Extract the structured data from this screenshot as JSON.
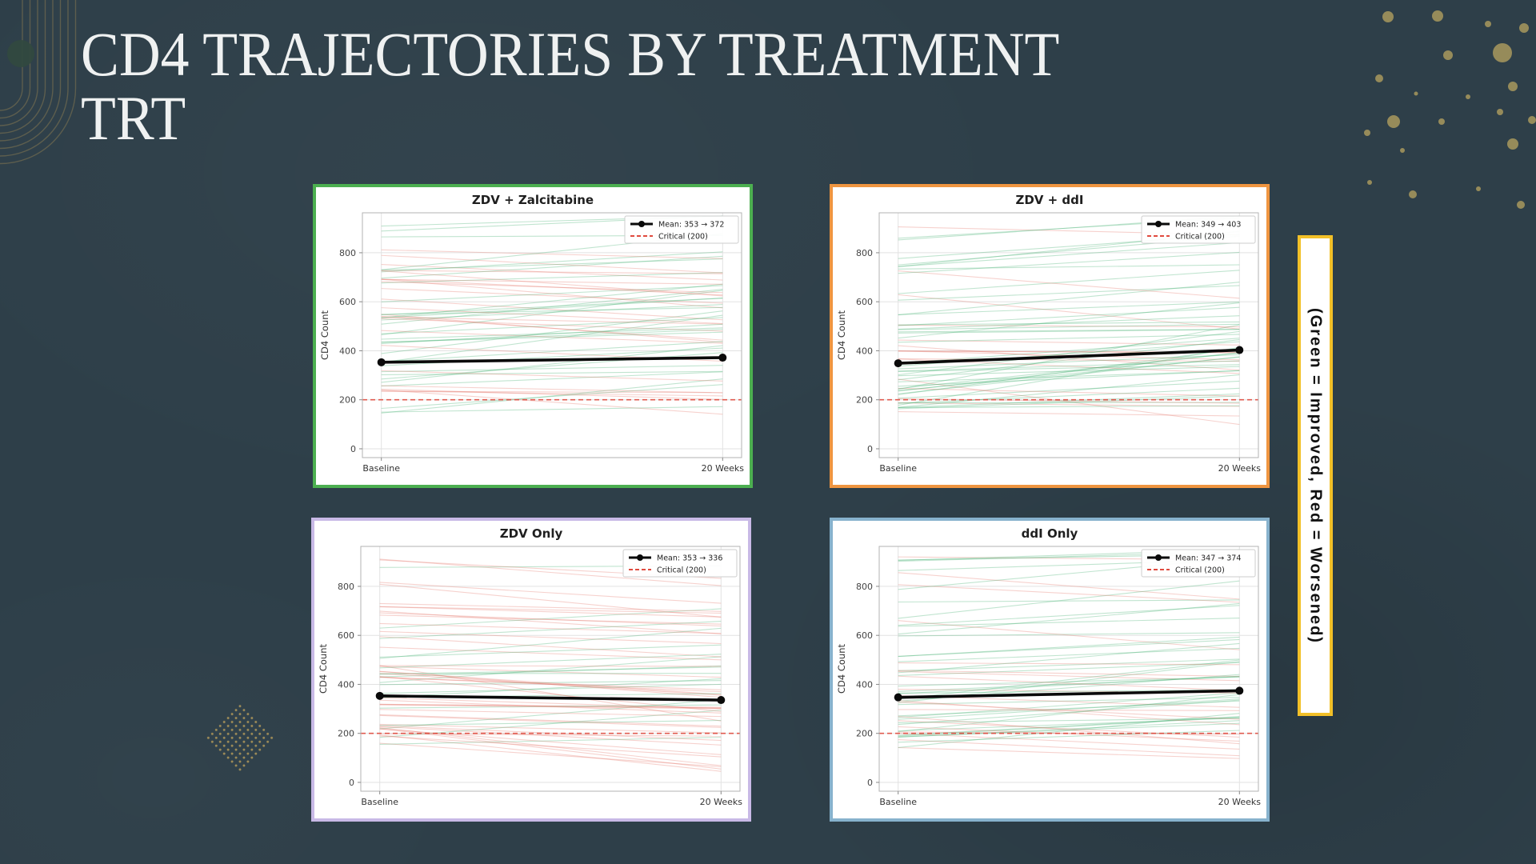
{
  "slide": {
    "title_line1": "CD4 TRAJECTORIES BY TREATMENT",
    "title_line2": "TRT",
    "side_note": "(Green = Improved, Red = Worsened)"
  },
  "colors": {
    "background": "#2e3f49",
    "title_text": "#eff1f1",
    "accent_yellow": "#f2c028",
    "gold_decor": "#9c8f5c",
    "improved_green": "#3fae6e",
    "worsened_red": "#e26b5e",
    "mean_black": "#0a0a0a",
    "critical_red": "#e04b3f",
    "grid_gray": "#e2e2e2",
    "spine_gray": "#b3b3b3"
  },
  "chart_data": [
    {
      "type": "line",
      "title": "ZDV + Zalcitabine",
      "border_color": "#4caf50",
      "ylabel": "CD4 Count",
      "categories": [
        "Baseline",
        "20 Weeks"
      ],
      "yticks": [
        0,
        200,
        400,
        600,
        800
      ],
      "ylim_display": [
        -36,
        963
      ],
      "mean_series": {
        "name": "Mean",
        "values": [
          353,
          372
        ]
      },
      "critical": {
        "value": 200
      },
      "legend": {
        "mean_label": "Mean: 353 → 372",
        "critical_label": "Critical (200)"
      },
      "spaghetti": {
        "count": 58,
        "seed": 7
      }
    },
    {
      "type": "line",
      "title": "ZDV + ddI",
      "border_color": "#ef9540",
      "ylabel": "CD4 Count",
      "categories": [
        "Baseline",
        "20 Weeks"
      ],
      "yticks": [
        0,
        200,
        400,
        600,
        800
      ],
      "ylim_display": [
        -36,
        963
      ],
      "mean_series": {
        "name": "Mean",
        "values": [
          349,
          403
        ]
      },
      "critical": {
        "value": 200
      },
      "legend": {
        "mean_label": "Mean: 349 → 403",
        "critical_label": "Critical (200)"
      },
      "spaghetti": {
        "count": 60,
        "seed": 13
      }
    },
    {
      "type": "line",
      "title": "ZDV Only",
      "border_color": "#c8b9e6",
      "ylabel": "CD4 Count",
      "categories": [
        "Baseline",
        "20 Weeks"
      ],
      "yticks": [
        0,
        200,
        400,
        600,
        800
      ],
      "ylim_display": [
        -36,
        963
      ],
      "mean_series": {
        "name": "Mean",
        "values": [
          353,
          336
        ]
      },
      "critical": {
        "value": 200
      },
      "legend": {
        "mean_label": "Mean: 353 → 336",
        "critical_label": "Critical (200)"
      },
      "spaghetti": {
        "count": 60,
        "seed": 21
      }
    },
    {
      "type": "line",
      "title": "ddI Only",
      "border_color": "#87b2cd",
      "ylabel": "CD4 Count",
      "categories": [
        "Baseline",
        "20 Weeks"
      ],
      "yticks": [
        0,
        200,
        400,
        600,
        800
      ],
      "ylim_display": [
        -36,
        963
      ],
      "mean_series": {
        "name": "Mean",
        "values": [
          347,
          374
        ]
      },
      "critical": {
        "value": 200
      },
      "legend": {
        "mean_label": "Mean: 347 → 374",
        "critical_label": "Critical (200)"
      },
      "spaghetti": {
        "count": 58,
        "seed": 29
      }
    }
  ]
}
